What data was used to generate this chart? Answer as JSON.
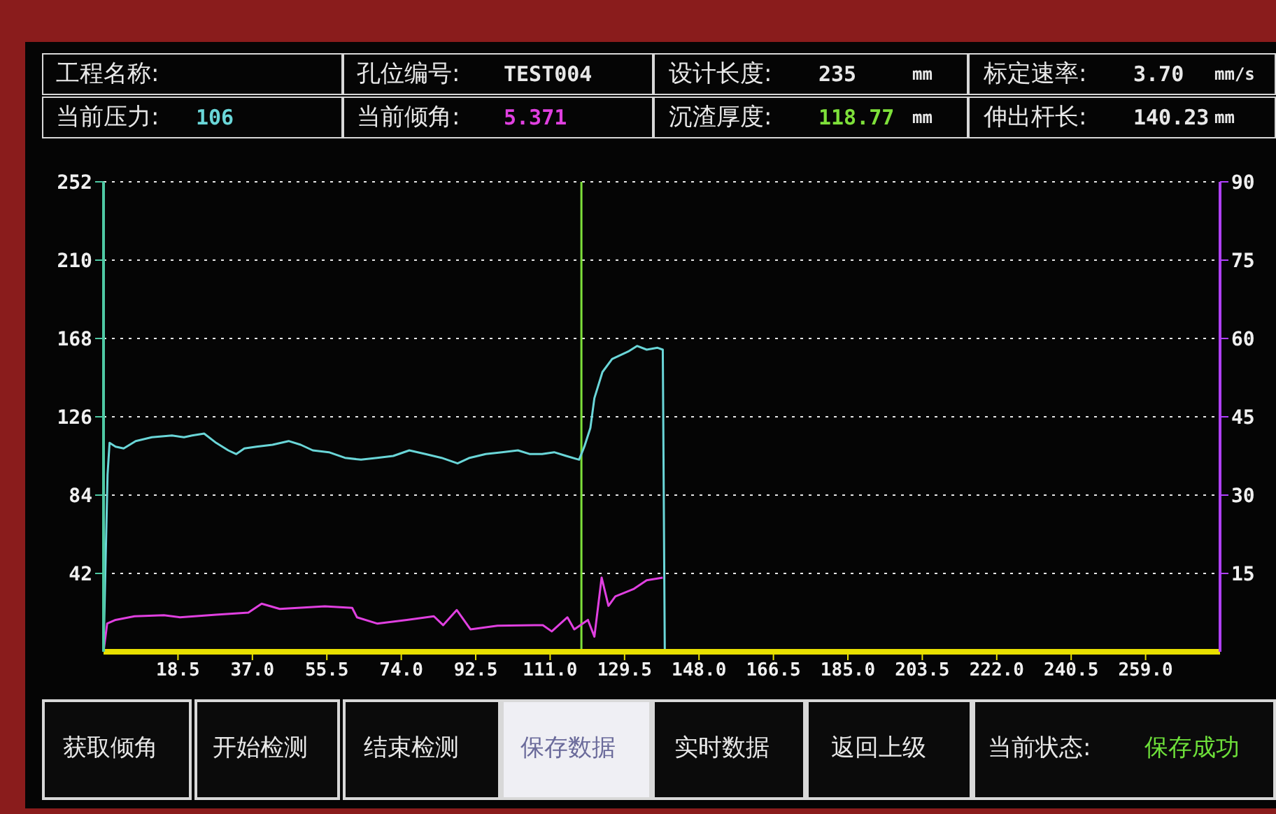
{
  "chart_data": {
    "type": "line",
    "annotations": [
      "工程名称:",
      "孔位编号:",
      "TEST004",
      "设计长度:",
      "235",
      "mm",
      "标定速率:",
      "3.70",
      "mm/s",
      "当前压力:",
      "106",
      "当前倾角:",
      "5.371",
      "沉渣厚度:",
      "118.77",
      "mm",
      "伸出杆长:",
      "140.23",
      "mm",
      "获取倾角",
      "开始检测",
      "结束检测",
      "保存数据",
      "实时数据",
      "返回上级",
      "当前状态:",
      "保存成功"
    ],
    "series": [
      {
        "axis": "y",
        "color": "#6ad6d8",
        "x": [
          0,
          1,
          1.5,
          3,
          5,
          8,
          12,
          17,
          20,
          22,
          25,
          28,
          31,
          33,
          35,
          38,
          42,
          46,
          49,
          52,
          56,
          60,
          64,
          68,
          72,
          76,
          80,
          84,
          88,
          91,
          95,
          99,
          103,
          106,
          109,
          112,
          115,
          118.2,
          119.5,
          121,
          122,
          124,
          126.4,
          130.4,
          132.6,
          135,
          137.7,
          139,
          139.5
        ],
        "values": [
          0,
          95,
          112,
          110,
          109,
          113,
          115,
          116,
          115,
          116,
          117,
          112,
          108,
          106,
          109,
          110,
          111,
          113,
          111,
          108,
          107,
          104,
          103,
          104,
          105,
          108,
          106,
          104,
          101,
          104,
          106,
          107,
          108,
          106,
          106,
          107,
          105,
          103,
          110,
          120,
          136,
          150,
          157,
          161,
          164,
          162,
          163,
          162,
          0
        ]
      },
      {
        "axis": "y2",
        "color": "#e040e0",
        "x": [
          0,
          0.9,
          3,
          7.7,
          15,
          19,
          28,
          36,
          39.3,
          43.8,
          55,
          61.8,
          63,
          68,
          75.4,
          82.1,
          84.4,
          87.8,
          91.2,
          97.9,
          109.2,
          111.4,
          115.3,
          117,
          120.4,
          122,
          123.8,
          125.5,
          127.2,
          131.7,
          135,
          139
        ],
        "values": [
          0,
          5.4,
          6.1,
          6.8,
          7,
          6.6,
          7.1,
          7.5,
          9.2,
          8.2,
          8.7,
          8.4,
          6.6,
          5.4,
          6.1,
          6.8,
          5.1,
          8,
          4.3,
          5,
          5.1,
          3.9,
          6.6,
          4.3,
          6.1,
          2.9,
          14.2,
          8.8,
          10.6,
          12,
          13.7,
          14.2
        ]
      }
    ],
    "xlim": [
      0,
      277.5
    ],
    "xticks": [
      18.5,
      {
        "value": 37,
        "label": "37.0"
      },
      55.5,
      {
        "value": 74,
        "label": "74.0"
      },
      92.5,
      {
        "value": 111,
        "label": "111.0"
      },
      129.5,
      {
        "value": 148,
        "label": "148.0"
      },
      166.5,
      {
        "value": 185,
        "label": "185.0"
      },
      203.5,
      {
        "value": 222,
        "label": "222.0"
      },
      240.5,
      {
        "value": 259,
        "label": "259.0"
      }
    ],
    "ylim": [
      0,
      252
    ],
    "yticks": [
      42,
      84,
      126,
      168,
      210,
      252
    ],
    "y2lim": [
      0,
      90
    ],
    "y2ticks": [
      15,
      30,
      45,
      60,
      75,
      90
    ],
    "ref_lines": [
      {
        "axis": "x",
        "value": 118.77,
        "label": null,
        "color": "#7ee03a"
      }
    ],
    "grid": "y",
    "marker": "none",
    "line_style": "solid",
    "legend": false
  }
}
